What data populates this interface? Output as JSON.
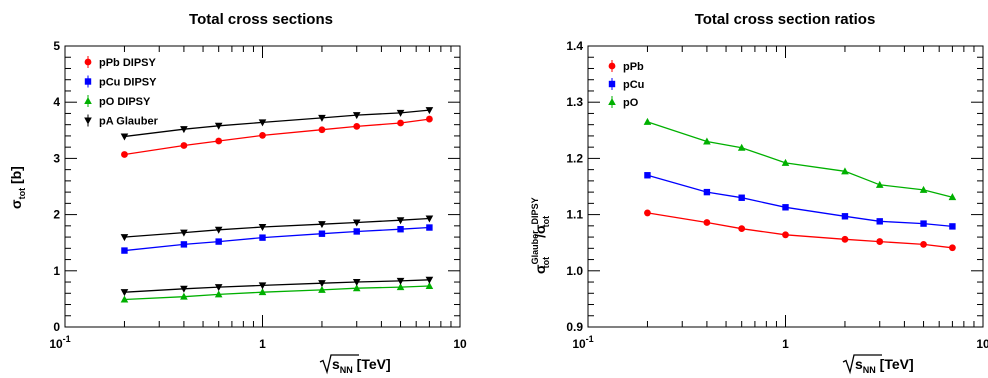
{
  "chart_data": [
    {
      "type": "line",
      "title": "Total cross sections",
      "xlabel": {
        "main": "s",
        "sub": "NN",
        "unit": " [TeV]"
      },
      "ylabel": {
        "main": "σ",
        "sub": "tot",
        "unit": " [b]"
      },
      "xscale": "log",
      "xlim": [
        0.1,
        10
      ],
      "ylim": [
        0,
        5
      ],
      "xticks": [
        {
          "value": 0.1,
          "label": "10",
          "sup": "-1"
        },
        {
          "value": 1,
          "label": "1",
          "sup": ""
        },
        {
          "value": 10,
          "label": "10",
          "sup": ""
        }
      ],
      "yticks": [
        {
          "value": 0,
          "label": "0"
        },
        {
          "value": 1,
          "label": "1"
        },
        {
          "value": 2,
          "label": "2"
        },
        {
          "value": 3,
          "label": "3"
        },
        {
          "value": 4,
          "label": "4"
        },
        {
          "value": 5,
          "label": "5"
        }
      ],
      "legend_position": "top-left",
      "x": [
        0.2,
        0.4,
        0.6,
        1,
        2,
        3,
        5,
        7
      ],
      "series": [
        {
          "name": "pPb DIPSY",
          "color": "#ff0000",
          "marker": "circle",
          "values": [
            3.07,
            3.23,
            3.31,
            3.41,
            3.51,
            3.57,
            3.63,
            3.7
          ]
        },
        {
          "name": "pCu DIPSY",
          "color": "#0000ff",
          "marker": "square",
          "values": [
            1.36,
            1.47,
            1.52,
            1.59,
            1.66,
            1.7,
            1.74,
            1.77
          ]
        },
        {
          "name": "pO  DIPSY",
          "color": "#00b000",
          "marker": "triangle-up",
          "values": [
            0.49,
            0.54,
            0.58,
            0.62,
            0.66,
            0.69,
            0.71,
            0.73
          ]
        },
        {
          "name": "pA  Glauber",
          "color": "#000000",
          "marker": "triangle-down",
          "values": [
            3.39,
            3.52,
            3.58,
            3.64,
            3.72,
            3.77,
            3.81,
            3.86
          ]
        },
        {
          "color": "#000000",
          "marker": "triangle-down",
          "values": [
            1.6,
            1.68,
            1.73,
            1.78,
            1.83,
            1.86,
            1.9,
            1.93
          ]
        },
        {
          "color": "#000000",
          "marker": "triangle-down",
          "values": [
            0.62,
            0.68,
            0.71,
            0.74,
            0.78,
            0.8,
            0.82,
            0.84
          ]
        }
      ]
    },
    {
      "type": "line",
      "title": "Total cross section ratios",
      "xlabel": {
        "main": "s",
        "sub": "NN",
        "unit": " [TeV]"
      },
      "ylabel": {
        "num": "σ",
        "num_sub": "tot",
        "num_sup": "Glauber",
        "den": "σ",
        "den_sub": "tot",
        "den_sup": "DIPSY"
      },
      "xscale": "log",
      "xlim": [
        0.1,
        10
      ],
      "ylim": [
        0.9,
        1.4
      ],
      "xticks": [
        {
          "value": 0.1,
          "label": "10",
          "sup": "-1"
        },
        {
          "value": 1,
          "label": "1",
          "sup": ""
        },
        {
          "value": 10,
          "label": "10",
          "sup": ""
        }
      ],
      "yticks": [
        {
          "value": 0.9,
          "label": "0.9"
        },
        {
          "value": 1.0,
          "label": "1.0"
        },
        {
          "value": 1.1,
          "label": "1.1"
        },
        {
          "value": 1.2,
          "label": "1.2"
        },
        {
          "value": 1.3,
          "label": "1.3"
        },
        {
          "value": 1.4,
          "label": "1.4"
        }
      ],
      "legend_position": "top-left",
      "x": [
        0.2,
        0.4,
        0.6,
        1,
        2,
        3,
        5,
        7
      ],
      "series": [
        {
          "name": "pPb",
          "color": "#ff0000",
          "marker": "circle",
          "values": [
            1.103,
            1.086,
            1.075,
            1.064,
            1.056,
            1.052,
            1.047,
            1.041
          ]
        },
        {
          "name": "pCu",
          "color": "#0000ff",
          "marker": "square",
          "values": [
            1.17,
            1.14,
            1.13,
            1.113,
            1.097,
            1.088,
            1.084,
            1.079
          ]
        },
        {
          "name": "pO",
          "color": "#00b000",
          "marker": "triangle-up",
          "values": [
            1.265,
            1.23,
            1.219,
            1.192,
            1.177,
            1.153,
            1.144,
            1.131
          ]
        }
      ]
    }
  ]
}
